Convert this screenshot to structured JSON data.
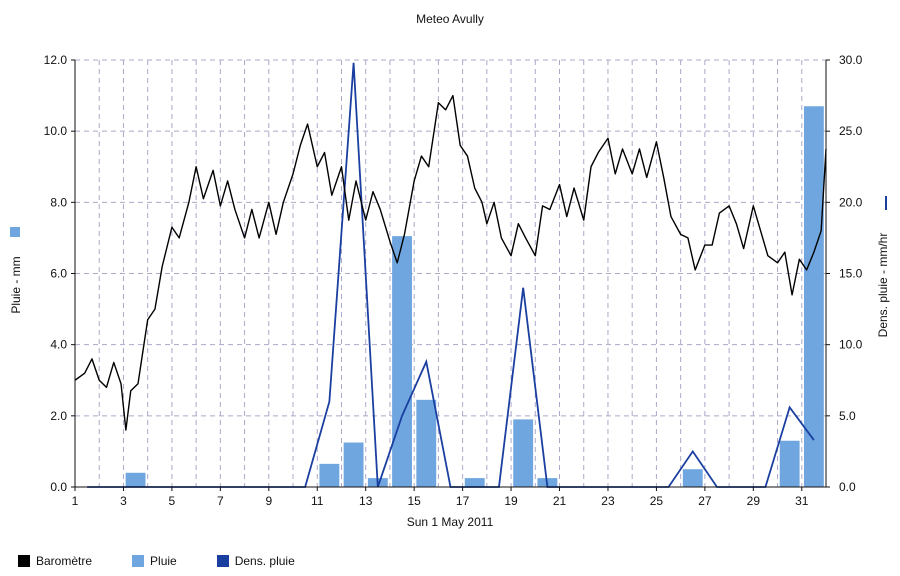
{
  "chart_data": {
    "type": "bar+line",
    "title": "Meteo  Avully",
    "xlabel": "Sun 1 May 2011",
    "ylabel_left": "Pluie - mm",
    "ylabel_right": "Dens. pluie - mm/hr",
    "x_ticks": [
      "1",
      "3",
      "5",
      "7",
      "9",
      "11",
      "13",
      "15",
      "17",
      "19",
      "21",
      "23",
      "25",
      "27",
      "29",
      "31"
    ],
    "x_tick_days": [
      1,
      3,
      5,
      7,
      9,
      11,
      13,
      15,
      17,
      19,
      21,
      23,
      25,
      27,
      29,
      31
    ],
    "xlim": [
      1,
      32
    ],
    "ylim_left": [
      0,
      12
    ],
    "ylim_right": [
      0,
      30
    ],
    "y_ticks_left": [
      "0.0",
      "2.0",
      "4.0",
      "6.0",
      "8.0",
      "10.0",
      "12.0"
    ],
    "y_ticks_right": [
      "0.0",
      "5.0",
      "10.0",
      "15.0",
      "20.0",
      "25.0",
      "30.0"
    ],
    "grid": true,
    "colors": {
      "barometre": "#000000",
      "pluie": "#6fa6e0",
      "dens_pluie": "#1a3fa0"
    },
    "series": [
      {
        "name": "Pluie",
        "kind": "bar",
        "axis": "left",
        "points": [
          [
            3.5,
            0.4
          ],
          [
            11.5,
            0.65
          ],
          [
            12.5,
            1.25
          ],
          [
            13.5,
            0.25
          ],
          [
            14.5,
            7.05
          ],
          [
            15.5,
            2.45
          ],
          [
            17.5,
            0.25
          ],
          [
            19.5,
            1.9
          ],
          [
            20.5,
            0.25
          ],
          [
            26.5,
            0.5
          ],
          [
            30.5,
            1.3
          ],
          [
            31.5,
            10.7
          ]
        ]
      },
      {
        "name": "Dens. pluie",
        "kind": "line",
        "axis": "right",
        "points": [
          [
            1.5,
            0
          ],
          [
            10.5,
            0
          ],
          [
            11.5,
            6.0
          ],
          [
            12.5,
            29.8
          ],
          [
            13.5,
            0
          ],
          [
            14.5,
            5.0
          ],
          [
            15.5,
            8.8
          ],
          [
            16.5,
            0
          ],
          [
            18.5,
            0
          ],
          [
            19.5,
            14.0
          ],
          [
            20.5,
            0
          ],
          [
            25.5,
            0
          ],
          [
            26.5,
            2.5
          ],
          [
            27.5,
            0
          ],
          [
            29.5,
            0
          ],
          [
            30.5,
            5.6
          ],
          [
            31.5,
            3.3
          ]
        ]
      },
      {
        "name": "Baromètre",
        "kind": "line",
        "axis": "left",
        "points": [
          [
            1.0,
            3.0
          ],
          [
            1.4,
            3.2
          ],
          [
            1.7,
            3.6
          ],
          [
            2.0,
            3.0
          ],
          [
            2.3,
            2.8
          ],
          [
            2.6,
            3.5
          ],
          [
            2.9,
            2.9
          ],
          [
            3.1,
            1.6
          ],
          [
            3.3,
            2.7
          ],
          [
            3.6,
            2.9
          ],
          [
            4.0,
            4.7
          ],
          [
            4.3,
            5.0
          ],
          [
            4.6,
            6.2
          ],
          [
            5.0,
            7.3
          ],
          [
            5.3,
            7.0
          ],
          [
            5.7,
            8.0
          ],
          [
            6.0,
            9.0
          ],
          [
            6.3,
            8.1
          ],
          [
            6.7,
            8.9
          ],
          [
            7.0,
            7.9
          ],
          [
            7.3,
            8.6
          ],
          [
            7.6,
            7.8
          ],
          [
            8.0,
            7.0
          ],
          [
            8.3,
            7.8
          ],
          [
            8.6,
            7.0
          ],
          [
            9.0,
            8.0
          ],
          [
            9.3,
            7.1
          ],
          [
            9.6,
            8.0
          ],
          [
            10.0,
            8.8
          ],
          [
            10.3,
            9.6
          ],
          [
            10.6,
            10.2
          ],
          [
            11.0,
            9.0
          ],
          [
            11.3,
            9.4
          ],
          [
            11.6,
            8.2
          ],
          [
            12.0,
            9.0
          ],
          [
            12.3,
            7.5
          ],
          [
            12.6,
            8.6
          ],
          [
            13.0,
            7.5
          ],
          [
            13.3,
            8.3
          ],
          [
            13.6,
            7.8
          ],
          [
            14.0,
            6.9
          ],
          [
            14.3,
            6.3
          ],
          [
            14.6,
            7.1
          ],
          [
            15.0,
            8.6
          ],
          [
            15.3,
            9.3
          ],
          [
            15.6,
            9.0
          ],
          [
            16.0,
            10.8
          ],
          [
            16.3,
            10.6
          ],
          [
            16.6,
            11.0
          ],
          [
            16.9,
            9.6
          ],
          [
            17.2,
            9.3
          ],
          [
            17.5,
            8.4
          ],
          [
            17.8,
            8.0
          ],
          [
            18.0,
            7.4
          ],
          [
            18.3,
            8.0
          ],
          [
            18.6,
            7.0
          ],
          [
            19.0,
            6.5
          ],
          [
            19.3,
            7.4
          ],
          [
            19.6,
            7.0
          ],
          [
            20.0,
            6.5
          ],
          [
            20.3,
            7.9
          ],
          [
            20.6,
            7.8
          ],
          [
            21.0,
            8.5
          ],
          [
            21.3,
            7.6
          ],
          [
            21.6,
            8.4
          ],
          [
            22.0,
            7.5
          ],
          [
            22.3,
            9.0
          ],
          [
            22.6,
            9.4
          ],
          [
            23.0,
            9.8
          ],
          [
            23.3,
            8.8
          ],
          [
            23.6,
            9.5
          ],
          [
            24.0,
            8.8
          ],
          [
            24.3,
            9.5
          ],
          [
            24.6,
            8.7
          ],
          [
            25.0,
            9.7
          ],
          [
            25.3,
            8.7
          ],
          [
            25.6,
            7.6
          ],
          [
            26.0,
            7.1
          ],
          [
            26.3,
            7.0
          ],
          [
            26.6,
            6.1
          ],
          [
            27.0,
            6.8
          ],
          [
            27.3,
            6.8
          ],
          [
            27.6,
            7.7
          ],
          [
            28.0,
            7.9
          ],
          [
            28.3,
            7.4
          ],
          [
            28.6,
            6.7
          ],
          [
            29.0,
            7.9
          ],
          [
            29.3,
            7.2
          ],
          [
            29.6,
            6.5
          ],
          [
            30.0,
            6.3
          ],
          [
            30.3,
            6.6
          ],
          [
            30.6,
            5.4
          ],
          [
            30.9,
            6.4
          ],
          [
            31.2,
            6.1
          ],
          [
            31.5,
            6.6
          ],
          [
            31.8,
            7.2
          ],
          [
            32.0,
            9.5
          ]
        ]
      }
    ]
  },
  "legend": [
    {
      "label": "Baromètre",
      "color": "#000000"
    },
    {
      "label": "Pluie",
      "color": "#6fa6e0"
    },
    {
      "label": "Dens. pluie",
      "color": "#1a3fa0"
    }
  ]
}
